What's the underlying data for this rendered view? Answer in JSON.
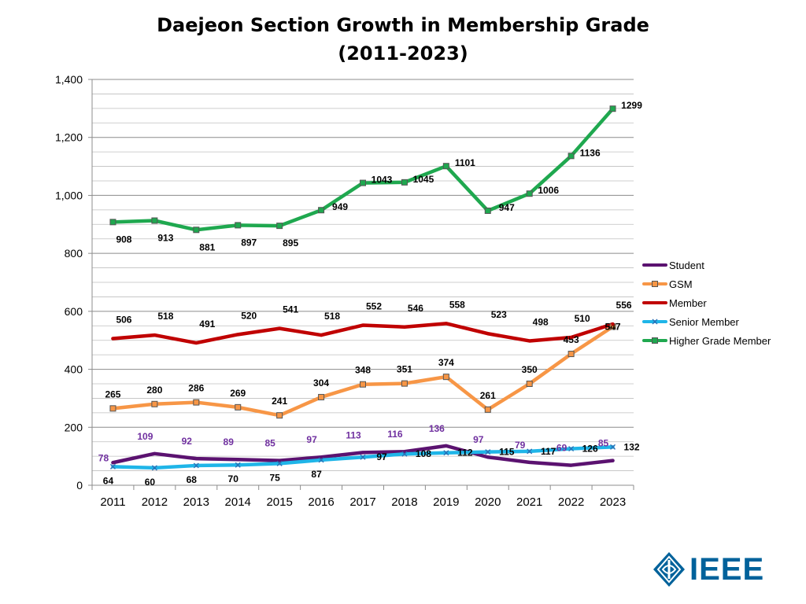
{
  "chart_data": {
    "type": "line",
    "title": "Daejeon Section Growth in Membership Grade",
    "subtitle": "(2011-2023)",
    "xlabel": "",
    "ylabel": "",
    "categories": [
      "2011",
      "2012",
      "2013",
      "2014",
      "2015",
      "2016",
      "2017",
      "2018",
      "2019",
      "2020",
      "2021",
      "2022",
      "2023"
    ],
    "ylim": [
      0,
      1400
    ],
    "yticks": [
      0,
      200,
      400,
      600,
      800,
      1000,
      1200,
      1400
    ],
    "ytick_labels": [
      "0",
      "200",
      "400",
      "600",
      "800",
      "1,000",
      "1,200",
      "1,400"
    ],
    "grid": true,
    "legend_position": "right",
    "series": [
      {
        "name": "Student",
        "color": "#5b1270",
        "label_color": "#7030a0",
        "marker": "none",
        "values": [
          78,
          109,
          92,
          89,
          85,
          97,
          113,
          116,
          136,
          97,
          79,
          69,
          85
        ]
      },
      {
        "name": "GSM",
        "color": "#f79646",
        "label_color": "#000000",
        "marker": "square",
        "values": [
          265,
          280,
          286,
          269,
          241,
          304,
          348,
          351,
          374,
          261,
          350,
          453,
          547
        ]
      },
      {
        "name": "Member",
        "color": "#c00000",
        "label_color": "#000000",
        "marker": "none",
        "values": [
          506,
          518,
          491,
          520,
          541,
          518,
          552,
          546,
          558,
          523,
          498,
          510,
          556
        ]
      },
      {
        "name": "Senior Member",
        "color": "#1fb5e8",
        "label_color": "#000000",
        "marker": "x",
        "values": [
          64,
          60,
          68,
          70,
          75,
          87,
          97,
          108,
          112,
          115,
          117,
          126,
          132
        ]
      },
      {
        "name": "Higher Grade Member",
        "color": "#1fa84f",
        "label_color": "#000000",
        "marker": "square",
        "values": [
          908,
          913,
          881,
          897,
          895,
          949,
          1043,
          1045,
          1101,
          947,
          1006,
          1136,
          1299
        ]
      }
    ]
  },
  "branding": {
    "logo_text": "IEEE",
    "logo_color": "#00629b"
  }
}
